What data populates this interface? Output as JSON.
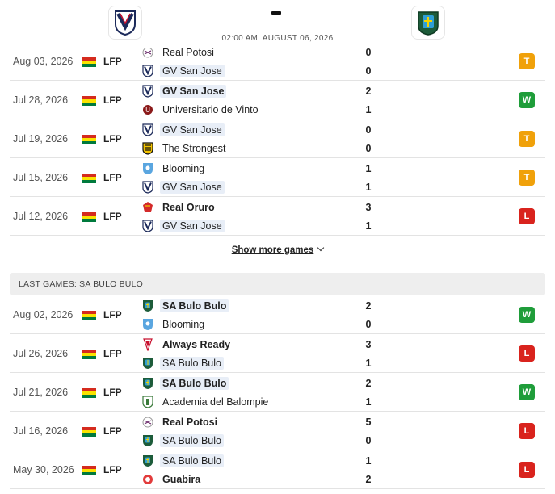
{
  "header": {
    "home_logo_icon": "gv-san-jose-crest-icon",
    "away_logo_icon": "sa-bulo-bulo-crest-icon",
    "score": "-",
    "datetime": "02:00 AM, AUGUST 06, 2026"
  },
  "home_games": [
    {
      "date": "Aug 03, 2026",
      "league": "LFP",
      "team1": {
        "name": "Real Potosi",
        "icon": "real-potosi-icon"
      },
      "team2": {
        "name": "GV San Jose",
        "icon": "gv-san-jose-icon",
        "hl": true
      },
      "score1": "0",
      "score2": "0",
      "result": "T"
    },
    {
      "date": "Jul 28, 2026",
      "league": "LFP",
      "team1": {
        "name": "GV San Jose",
        "icon": "gv-san-jose-icon",
        "hl": true,
        "bold": true
      },
      "team2": {
        "name": "Universitario de Vinto",
        "icon": "universitario-vinto-icon"
      },
      "score1": "2",
      "score2": "1",
      "result": "W"
    },
    {
      "date": "Jul 19, 2026",
      "league": "LFP",
      "team1": {
        "name": "GV San Jose",
        "icon": "gv-san-jose-icon",
        "hl": true
      },
      "team2": {
        "name": "The Strongest",
        "icon": "the-strongest-icon"
      },
      "score1": "0",
      "score2": "0",
      "result": "T"
    },
    {
      "date": "Jul 15, 2026",
      "league": "LFP",
      "team1": {
        "name": "Blooming",
        "icon": "blooming-icon"
      },
      "team2": {
        "name": "GV San Jose",
        "icon": "gv-san-jose-icon",
        "hl": true
      },
      "score1": "1",
      "score2": "1",
      "result": "T"
    },
    {
      "date": "Jul 12, 2026",
      "league": "LFP",
      "team1": {
        "name": "Real Oruro",
        "icon": "real-oruro-icon",
        "bold": true
      },
      "team2": {
        "name": "GV San Jose",
        "icon": "gv-san-jose-icon",
        "hl": true
      },
      "score1": "3",
      "score2": "1",
      "result": "L"
    }
  ],
  "show_more_label": "Show more games",
  "section_title": "LAST GAMES: SA BULO BULO",
  "away_games": [
    {
      "date": "Aug 02, 2026",
      "league": "LFP",
      "team1": {
        "name": "SA Bulo Bulo",
        "icon": "sa-bulo-bulo-icon",
        "hl": true,
        "bold": true
      },
      "team2": {
        "name": "Blooming",
        "icon": "blooming-icon"
      },
      "score1": "2",
      "score2": "0",
      "result": "W"
    },
    {
      "date": "Jul 26, 2026",
      "league": "LFP",
      "team1": {
        "name": "Always Ready",
        "icon": "always-ready-icon",
        "bold": true
      },
      "team2": {
        "name": "SA Bulo Bulo",
        "icon": "sa-bulo-bulo-icon",
        "hl": true
      },
      "score1": "3",
      "score2": "1",
      "result": "L"
    },
    {
      "date": "Jul 21, 2026",
      "league": "LFP",
      "team1": {
        "name": "SA Bulo Bulo",
        "icon": "sa-bulo-bulo-icon",
        "hl": true,
        "bold": true
      },
      "team2": {
        "name": "Academia del Balompie",
        "icon": "academia-balompie-icon"
      },
      "score1": "2",
      "score2": "1",
      "result": "W"
    },
    {
      "date": "Jul 16, 2026",
      "league": "LFP",
      "team1": {
        "name": "Real Potosi",
        "icon": "real-potosi-icon",
        "bold": true
      },
      "team2": {
        "name": "SA Bulo Bulo",
        "icon": "sa-bulo-bulo-icon",
        "hl": true
      },
      "score1": "5",
      "score2": "0",
      "result": "L"
    },
    {
      "date": "May 30, 2026",
      "league": "LFP",
      "team1": {
        "name": "SA Bulo Bulo",
        "icon": "sa-bulo-bulo-icon",
        "hl": true
      },
      "team2": {
        "name": "Guabira",
        "icon": "guabira-icon",
        "bold": true
      },
      "score1": "1",
      "score2": "2",
      "result": "L"
    }
  ],
  "colors": {
    "win": "#1f9d3a",
    "loss": "#d9231d",
    "tie": "#f0a10a",
    "highlight": "#e8eef7"
  }
}
